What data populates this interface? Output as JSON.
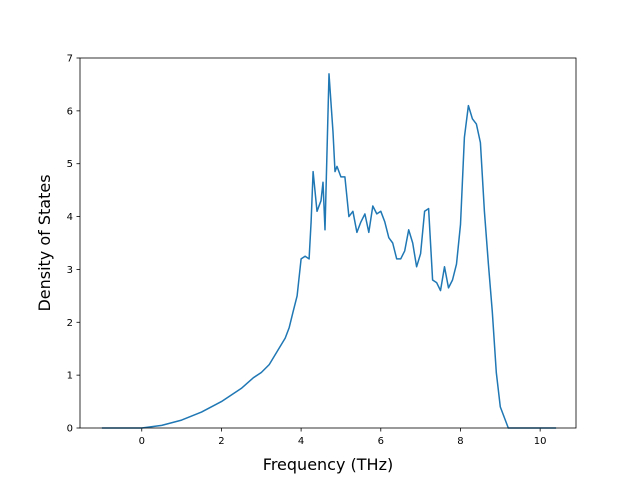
{
  "chart_data": {
    "type": "line",
    "title": "",
    "xlabel": "Frequency (THz)",
    "ylabel": "Density of States",
    "xlim": [
      -1.55,
      10.9
    ],
    "ylim": [
      0,
      7
    ],
    "xticks": [
      0,
      2,
      4,
      6,
      8,
      10
    ],
    "yticks": [
      0,
      1,
      2,
      3,
      4,
      5,
      6,
      7
    ],
    "grid": false,
    "legend": "none",
    "colors": {
      "line": "#1f77b4",
      "axes": "#000000",
      "background": "#ffffff"
    },
    "series": [
      {
        "x": [
          -1.0,
          -0.5,
          0.0,
          0.5,
          1.0,
          1.5,
          2.0,
          2.5,
          2.8,
          3.0,
          3.2,
          3.4,
          3.6,
          3.7,
          3.8,
          3.9,
          4.0,
          4.1,
          4.2,
          4.25,
          4.3,
          4.4,
          4.5,
          4.55,
          4.6,
          4.7,
          4.8,
          4.85,
          4.9,
          5.0,
          5.1,
          5.2,
          5.3,
          5.4,
          5.5,
          5.6,
          5.7,
          5.8,
          5.9,
          6.0,
          6.1,
          6.2,
          6.3,
          6.4,
          6.5,
          6.6,
          6.7,
          6.8,
          6.9,
          7.0,
          7.1,
          7.2,
          7.3,
          7.4,
          7.5,
          7.6,
          7.7,
          7.8,
          7.9,
          8.0,
          8.1,
          8.2,
          8.3,
          8.4,
          8.5,
          8.6,
          8.7,
          8.8,
          8.9,
          9.0,
          9.2,
          9.3,
          9.45,
          9.6,
          10.4
        ],
        "y": [
          0.0,
          0.0,
          0.0,
          0.05,
          0.15,
          0.3,
          0.5,
          0.75,
          0.95,
          1.05,
          1.2,
          1.45,
          1.7,
          1.9,
          2.2,
          2.5,
          3.2,
          3.25,
          3.2,
          3.9,
          4.85,
          4.1,
          4.3,
          4.65,
          3.75,
          6.7,
          5.6,
          4.85,
          4.95,
          4.75,
          4.75,
          4.0,
          4.1,
          3.7,
          3.9,
          4.05,
          3.7,
          4.2,
          4.05,
          4.1,
          3.9,
          3.6,
          3.5,
          3.2,
          3.2,
          3.35,
          3.75,
          3.5,
          3.05,
          3.3,
          4.1,
          4.15,
          2.8,
          2.75,
          2.6,
          3.05,
          2.65,
          2.8,
          3.1,
          3.85,
          5.5,
          6.1,
          5.85,
          5.75,
          5.4,
          4.1,
          3.1,
          2.2,
          1.05,
          0.4,
          0.0,
          0.0,
          0.0,
          0.0,
          0.0
        ]
      }
    ]
  }
}
